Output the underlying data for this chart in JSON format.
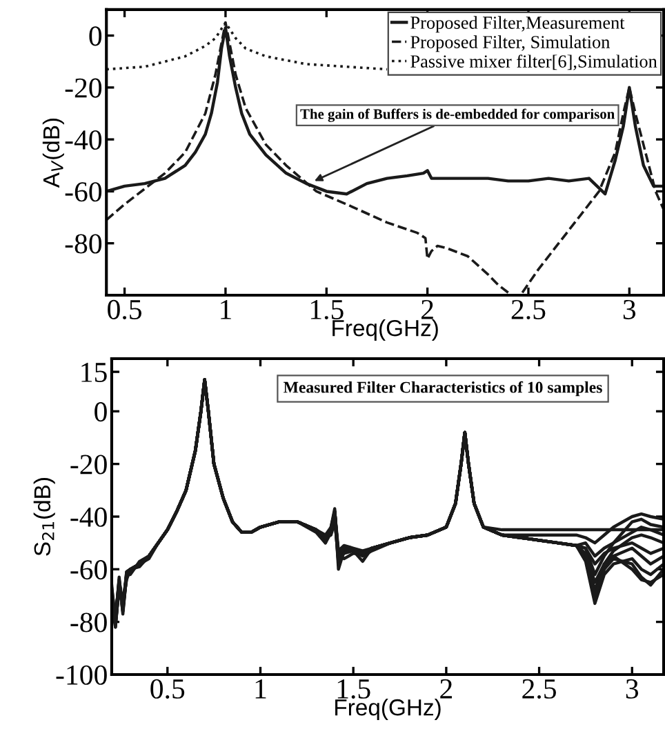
{
  "chart_data": [
    {
      "type": "line",
      "xlabel": "Freq(GHz)",
      "ylabel": "A$_{V}$(dB)",
      "xlim": [
        0.41,
        3.17
      ],
      "ylim": [
        -100,
        10
      ],
      "xticks": [
        0.5,
        1,
        1.5,
        2,
        2.5,
        3
      ],
      "yticks": [
        -80,
        -60,
        -40,
        -20,
        0
      ],
      "grid": false,
      "legend": "top right",
      "annotations": [
        {
          "text": "The gain of Buffers is de-embedded for comparison",
          "x": 1.44,
          "y": -56
        }
      ],
      "series": [
        {
          "name": "Proposed Filter,Measurement",
          "color": "#1a1a1a",
          "line_style": "solid",
          "x": [
            0.41,
            0.5,
            0.6,
            0.7,
            0.8,
            0.85,
            0.9,
            0.93,
            0.96,
            0.98,
            1.0,
            1.02,
            1.05,
            1.08,
            1.12,
            1.2,
            1.3,
            1.4,
            1.5,
            1.6,
            1.7,
            1.8,
            1.9,
            1.98,
            2.0,
            2.02,
            2.1,
            2.2,
            2.3,
            2.4,
            2.5,
            2.6,
            2.7,
            2.8,
            2.88,
            2.93,
            2.97,
            3.0,
            3.03,
            3.07,
            3.12,
            3.17
          ],
          "values": [
            -60,
            -58,
            -57,
            -55,
            -50,
            -45,
            -38,
            -30,
            -18,
            -5,
            3,
            -8,
            -20,
            -30,
            -38,
            -46,
            -53,
            -57,
            -60,
            -61,
            -57,
            -55,
            -54,
            -53,
            -52,
            -55,
            -55,
            -55,
            -55,
            -56,
            -56,
            -55,
            -56,
            -55,
            -61,
            -48,
            -35,
            -20,
            -35,
            -50,
            -58,
            -58
          ]
        },
        {
          "name": "Proposed Filter, Simulation",
          "color": "#1a1a1a",
          "line_style": "dashed",
          "x": [
            0.41,
            0.5,
            0.6,
            0.7,
            0.8,
            0.9,
            0.95,
            0.98,
            1.0,
            1.02,
            1.05,
            1.1,
            1.2,
            1.3,
            1.45,
            1.6,
            1.8,
            1.95,
            1.99,
            2.0,
            2.02,
            2.05,
            2.1,
            2.2,
            2.3,
            2.35,
            2.4,
            2.44,
            2.47,
            2.55,
            2.65,
            2.75,
            2.85,
            2.93,
            2.97,
            3.0,
            3.03,
            3.08,
            3.13,
            3.17
          ],
          "values": [
            -71,
            -65,
            -59,
            -53,
            -45,
            -30,
            -15,
            -3,
            5,
            -3,
            -15,
            -28,
            -42,
            -50,
            -60,
            -65,
            -72,
            -76,
            -78,
            -86,
            -83,
            -81,
            -82,
            -85,
            -92,
            -96,
            -99,
            null,
            -99,
            -90,
            -80,
            -70,
            -60,
            -45,
            -30,
            -20,
            -30,
            -45,
            -60,
            -67
          ]
        },
        {
          "name": "Passive mixer filter[6],Simulation",
          "color": "#1a1a1a",
          "line_style": "dotted",
          "x": [
            0.41,
            0.6,
            0.8,
            0.9,
            0.95,
            1.0,
            1.05,
            1.1,
            1.2,
            1.4,
            1.6,
            1.8
          ],
          "values": [
            -13,
            -12,
            -8,
            -4,
            -1,
            5,
            -1,
            -5,
            -8,
            -11,
            -12,
            -13
          ]
        }
      ]
    },
    {
      "type": "line",
      "xlabel": "Freq(GHz)",
      "ylabel": "S$_{21}$(dB)",
      "xlim": [
        0.2,
        3.17
      ],
      "ylim": [
        -100,
        20
      ],
      "xticks": [
        0.5,
        1,
        1.5,
        2,
        2.5,
        3
      ],
      "yticks": [
        -100,
        -80,
        -60,
        -40,
        -20,
        0,
        15
      ],
      "grid": false,
      "legend": false,
      "annotations": [
        "Measured Filter Characteristics of 10 samples"
      ],
      "x": [
        0.2,
        0.22,
        0.24,
        0.26,
        0.28,
        0.3,
        0.35,
        0.4,
        0.45,
        0.5,
        0.55,
        0.6,
        0.65,
        0.68,
        0.7,
        0.72,
        0.75,
        0.8,
        0.85,
        0.9,
        0.95,
        1.0,
        1.1,
        1.2,
        1.3,
        1.35,
        1.38,
        1.4,
        1.42,
        1.45,
        1.5,
        1.55,
        1.6,
        1.7,
        1.8,
        1.9,
        2.0,
        2.05,
        2.08,
        2.1,
        2.12,
        2.15,
        2.2,
        2.3,
        2.4,
        2.5,
        2.6,
        2.7,
        2.75,
        2.8,
        2.85,
        2.9,
        3.0,
        3.05,
        3.1,
        3.17
      ],
      "series": [
        {
          "color": "#1a1a1a",
          "line_style": "solid",
          "values": [
            -70,
            -80,
            -65,
            -75,
            -62,
            -60,
            -58,
            -55,
            -50,
            -45,
            -38,
            -30,
            -15,
            0,
            12,
            0,
            -20,
            -33,
            -42,
            -46,
            -46,
            -44,
            -42,
            -42,
            -45,
            -48,
            -45,
            -38,
            -55,
            -52,
            -53,
            -54,
            -52,
            -50,
            -48,
            -47,
            -44,
            -35,
            -20,
            -8,
            -20,
            -35,
            -44,
            -45,
            -45,
            -45,
            -45,
            -45,
            -45,
            -45,
            -45,
            -45,
            -45,
            -45,
            -45,
            -45
          ]
        },
        {
          "color": "#1a1a1a",
          "line_style": "solid",
          "values": [
            -68,
            -82,
            -66,
            -72,
            -63,
            -61,
            -58,
            -55,
            -50,
            -45,
            -38,
            -30,
            -15,
            0,
            12,
            0,
            -20,
            -33,
            -42,
            -46,
            -46,
            -44,
            -42,
            -42,
            -45,
            -48,
            -46,
            -40,
            -58,
            -52,
            -53,
            -54,
            -52,
            -50,
            -48,
            -47,
            -44,
            -35,
            -20,
            -8,
            -20,
            -35,
            -44,
            -47,
            -47,
            -47,
            -47,
            -47,
            -48,
            -50,
            -47,
            -44,
            -40,
            -39,
            -40,
            -41
          ]
        },
        {
          "color": "#1a1a1a",
          "line_style": "solid",
          "values": [
            -72,
            -78,
            -64,
            -76,
            -61,
            -60,
            -59,
            -55,
            -50,
            -45,
            -38,
            -30,
            -15,
            0,
            12,
            0,
            -20,
            -33,
            -42,
            -46,
            -46,
            -44,
            -42,
            -42,
            -45,
            -50,
            -44,
            -37,
            -60,
            -53,
            -53,
            -55,
            -53,
            -50,
            -48,
            -47,
            -44,
            -35,
            -20,
            -8,
            -20,
            -35,
            -44,
            -47,
            -48,
            -49,
            -50,
            -51,
            -52,
            -62,
            -55,
            -50,
            -42,
            -41,
            -43,
            -44
          ]
        },
        {
          "color": "#1a1a1a",
          "line_style": "solid",
          "values": [
            -66,
            -81,
            -67,
            -74,
            -62,
            -62,
            -57,
            -55,
            -50,
            -45,
            -38,
            -30,
            -15,
            0,
            12,
            0,
            -20,
            -33,
            -42,
            -46,
            -46,
            -44,
            -42,
            -42,
            -45,
            -48,
            -47,
            -42,
            -54,
            -56,
            -54,
            -54,
            -52,
            -50,
            -48,
            -47,
            -44,
            -35,
            -20,
            -8,
            -20,
            -35,
            -44,
            -47,
            -48,
            -49,
            -50,
            -51,
            -55,
            -68,
            -58,
            -53,
            -48,
            -47,
            -48,
            -50
          ]
        },
        {
          "color": "#1a1a1a",
          "line_style": "solid",
          "values": [
            -74,
            -79,
            -65,
            -73,
            -64,
            -60,
            -58,
            -56,
            -50,
            -45,
            -38,
            -30,
            -15,
            0,
            12,
            0,
            -20,
            -33,
            -42,
            -46,
            -46,
            -44,
            -42,
            -42,
            -45,
            -49,
            -45,
            -39,
            -56,
            -52,
            -53,
            -57,
            -52,
            -50,
            -48,
            -47,
            -44,
            -35,
            -20,
            -8,
            -20,
            -35,
            -44,
            -47,
            -48,
            -49,
            -50,
            -51,
            -56,
            -72,
            -60,
            -55,
            -52,
            -55,
            -58,
            -55
          ]
        },
        {
          "color": "#1a1a1a",
          "line_style": "solid",
          "values": [
            -69,
            -80,
            -63,
            -77,
            -62,
            -61,
            -58,
            -55,
            -50,
            -45,
            -38,
            -30,
            -15,
            0,
            12,
            0,
            -20,
            -33,
            -42,
            -46,
            -46,
            -44,
            -42,
            -42,
            -45,
            -48,
            -45,
            -38,
            -55,
            -52,
            -53,
            -54,
            -52,
            -50,
            -48,
            -47,
            -44,
            -35,
            -20,
            -8,
            -20,
            -35,
            -44,
            -47,
            -48,
            -49,
            -50,
            -51,
            -57,
            -73,
            -62,
            -58,
            -56,
            -60,
            -62,
            -58
          ]
        },
        {
          "color": "#1a1a1a",
          "line_style": "solid",
          "values": [
            -71,
            -82,
            -66,
            -75,
            -63,
            -60,
            -58,
            -55,
            -50,
            -45,
            -38,
            -30,
            -15,
            0,
            12,
            0,
            -20,
            -33,
            -42,
            -46,
            -46,
            -44,
            -42,
            -42,
            -46,
            -50,
            -46,
            -41,
            -57,
            -54,
            -53,
            -54,
            -52,
            -50,
            -48,
            -47,
            -44,
            -35,
            -20,
            -8,
            -20,
            -35,
            -44,
            -47,
            -48,
            -49,
            -50,
            -51,
            -55,
            -70,
            -60,
            -56,
            -58,
            -63,
            -66,
            -60
          ]
        },
        {
          "color": "#1a1a1a",
          "line_style": "solid",
          "values": [
            -67,
            -79,
            -64,
            -74,
            -61,
            -60,
            -58,
            -55,
            -50,
            -45,
            -38,
            -30,
            -15,
            0,
            12,
            0,
            -20,
            -33,
            -42,
            -46,
            -46,
            -44,
            -42,
            -42,
            -45,
            -48,
            -45,
            -38,
            -55,
            -52,
            -53,
            -54,
            -52,
            -50,
            -48,
            -47,
            -44,
            -35,
            -20,
            -8,
            -20,
            -35,
            -44,
            -47,
            -48,
            -49,
            -50,
            -51,
            -54,
            -65,
            -58,
            -55,
            -60,
            -64,
            -65,
            -62
          ]
        },
        {
          "color": "#1a1a1a",
          "line_style": "solid",
          "values": [
            -73,
            -81,
            -66,
            -76,
            -63,
            -61,
            -58,
            -55,
            -50,
            -45,
            -38,
            -30,
            -15,
            0,
            12,
            0,
            -20,
            -33,
            -42,
            -46,
            -46,
            -44,
            -42,
            -42,
            -45,
            -47,
            -44,
            -38,
            -53,
            -51,
            -52,
            -53,
            -52,
            -50,
            -48,
            -47,
            -44,
            -35,
            -20,
            -8,
            -20,
            -35,
            -44,
            -47,
            -48,
            -49,
            -50,
            -51,
            -52,
            -58,
            -54,
            -52,
            -50,
            -52,
            -54,
            -52
          ]
        },
        {
          "color": "#1a1a1a",
          "line_style": "solid",
          "values": [
            -70,
            -78,
            -65,
            -75,
            -62,
            -60,
            -58,
            -55,
            -50,
            -45,
            -38,
            -30,
            -15,
            0,
            12,
            0,
            -20,
            -33,
            -42,
            -46,
            -46,
            -44,
            -42,
            -42,
            -45,
            -48,
            -45,
            -38,
            -55,
            -52,
            -53,
            -54,
            -52,
            -50,
            -48,
            -47,
            -44,
            -35,
            -20,
            -8,
            -20,
            -35,
            -44,
            -47,
            -48,
            -49,
            -50,
            -51,
            -50,
            -55,
            -52,
            -50,
            -46,
            -44,
            -45,
            -47
          ]
        }
      ]
    }
  ]
}
